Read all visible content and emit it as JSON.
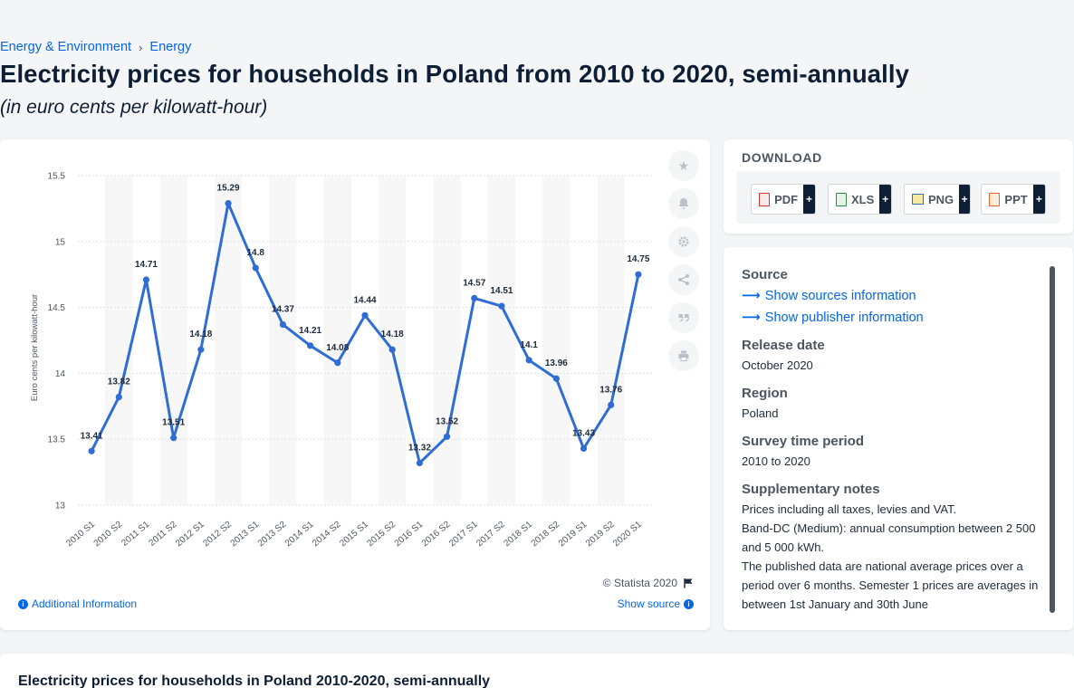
{
  "breadcrumb": {
    "items": [
      "Energy & Environment",
      "Energy"
    ],
    "separator": "›"
  },
  "header": {
    "title": "Electricity prices for households in Poland from 2010 to 2020, semi-annually",
    "subtitle": "(in euro cents per kilowatt-hour)"
  },
  "chart_footer": {
    "copyright": "© Statista 2020",
    "additional_info": "Additional Information",
    "show_source": "Show source"
  },
  "tools": [
    "star-icon",
    "bell-icon",
    "gear-icon",
    "share-icon",
    "quote-icon",
    "print-icon"
  ],
  "download": {
    "title": "DOWNLOAD",
    "buttons": [
      {
        "label": "PDF",
        "color": "#d9302c"
      },
      {
        "label": "XLS",
        "color": "#2e8a3e"
      },
      {
        "label": "PNG",
        "color": "#2d6fb5"
      },
      {
        "label": "PPT",
        "color": "#e0692a"
      }
    ],
    "plus": "+"
  },
  "source_panel": {
    "source_heading": "Source",
    "show_sources": "Show sources information",
    "show_publisher": "Show publisher information",
    "release_heading": "Release date",
    "release_value": "October 2020",
    "region_heading": "Region",
    "region_value": "Poland",
    "survey_heading": "Survey time period",
    "survey_value": "2010 to 2020",
    "notes_heading": "Supplementary notes",
    "notes": [
      "Prices including all taxes, levies and VAT.",
      "Band-DC (Medium): annual consumption between 2 500 and 5 000 kWh.",
      "The published data are national average prices over a period over 6 months. Semester 1 prices are averages in between 1st January and 30th June"
    ]
  },
  "bottom": {
    "title": "Electricity prices for households in Poland 2010-2020, semi-annually"
  },
  "colors": {
    "accent": "#0666e5",
    "line": "#2f6dd5",
    "navy": "#0e1f35"
  },
  "chart_data": {
    "type": "line",
    "title": "",
    "ylabel": "Euro cents per kilowatt-hour",
    "xlabel": "",
    "ylim": [
      13,
      15.5
    ],
    "yticks": [
      13,
      13.5,
      14,
      14.5,
      15,
      15.5
    ],
    "categories": [
      "2010 S1",
      "2010 S2",
      "2011 S1",
      "2011 S2",
      "2012 S1",
      "2012 S2",
      "2013 S1",
      "2013 S2",
      "2014 S1",
      "2014 S2",
      "2015 S1",
      "2015 S2",
      "2016 S1",
      "2016 S2",
      "2017 S1",
      "2017 S2",
      "2018 S1",
      "2018 S2",
      "2019 S1",
      "2019 S2",
      "2020 S1"
    ],
    "values": [
      13.41,
      13.82,
      14.71,
      13.51,
      14.18,
      15.29,
      14.8,
      14.37,
      14.21,
      14.08,
      14.44,
      14.18,
      13.32,
      13.52,
      14.57,
      14.51,
      14.1,
      13.96,
      13.43,
      13.76,
      14.75
    ],
    "grid": true,
    "legend": "none"
  }
}
